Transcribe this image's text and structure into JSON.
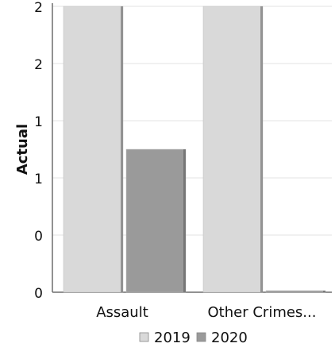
{
  "chart_data": {
    "type": "bar",
    "title": "",
    "xlabel": "",
    "ylabel": "Actual",
    "categories": [
      "Assault",
      "Other Crimes..."
    ],
    "series": [
      {
        "name": "2019",
        "values": [
          2.5,
          2.5
        ],
        "color": "#d9d9d9"
      },
      {
        "name": "2020",
        "values": [
          1.25,
          0.0
        ],
        "color": "#9a9a9a"
      }
    ],
    "ylim": [
      0,
      2.5
    ],
    "y_ticks": [
      {
        "value": 0,
        "label": "0"
      },
      {
        "value": 0.5,
        "label": "0"
      },
      {
        "value": 1,
        "label": "1"
      },
      {
        "value": 1.5,
        "label": "1"
      },
      {
        "value": 2,
        "label": "2"
      },
      {
        "value": 2.5,
        "label": "2"
      }
    ],
    "grid": true,
    "legend_position": "bottom"
  }
}
